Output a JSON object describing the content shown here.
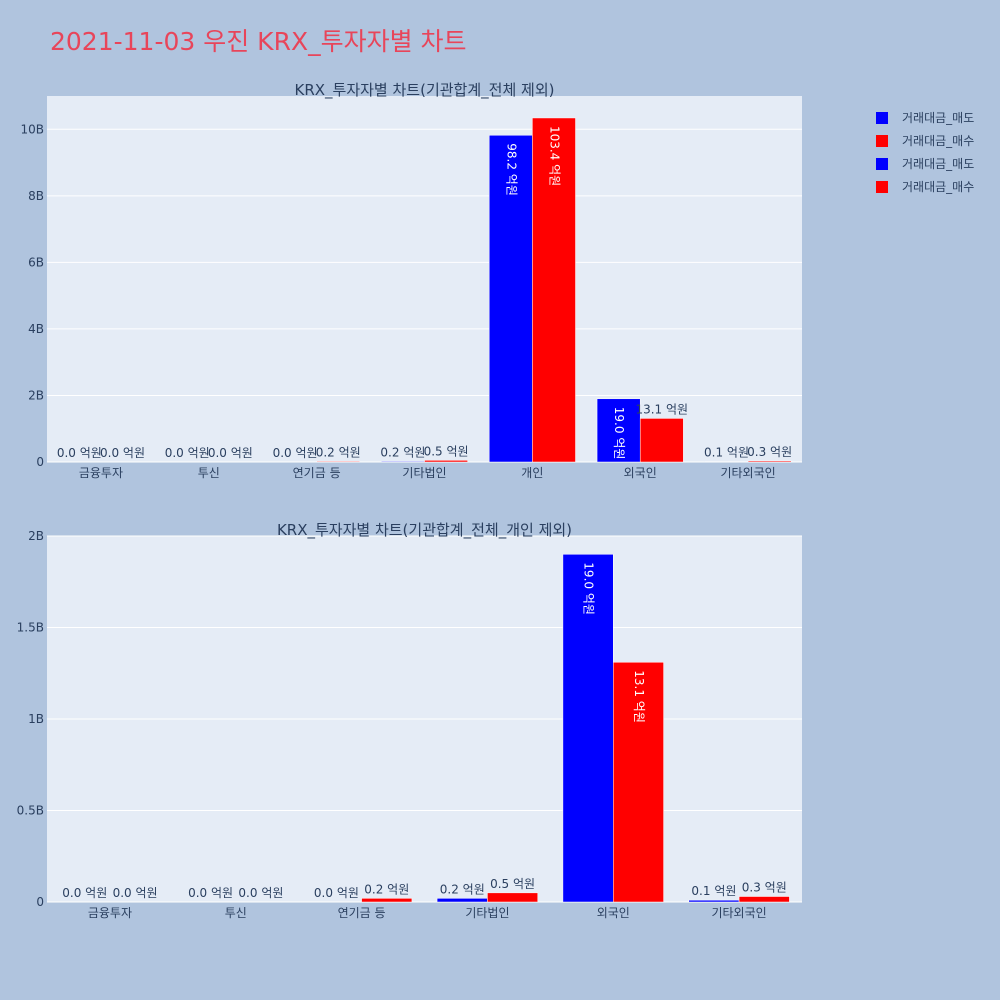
{
  "title": "2021-11-03 우진 KRX_투자자별 차트",
  "colors": {
    "sell": "#0000ff",
    "buy": "#ff0000",
    "plot_bg": "#e5ecf6",
    "page_bg": "#b0c4de",
    "text": "#2a3f5f"
  },
  "legend": [
    {
      "label": "거래대금_매도",
      "color": "#0000ff"
    },
    {
      "label": "거래대금_매수",
      "color": "#ff0000"
    },
    {
      "label": "거래대금_매도",
      "color": "#0000ff"
    },
    {
      "label": "거래대금_매수",
      "color": "#ff0000"
    }
  ],
  "chart_data": [
    {
      "type": "bar",
      "title": "KRX_투자자별 차트(기관합계_전체 제외)",
      "categories": [
        "금융투자",
        "투신",
        "연기금 등",
        "기타법인",
        "개인",
        "외국인",
        "기타외국인"
      ],
      "series": [
        {
          "name": "거래대금_매도",
          "values": [
            0.0,
            0.0,
            0.0,
            0.2,
            98.2,
            19.0,
            0.1
          ],
          "labels": [
            "0.0 억원",
            "0.0 억원",
            "0.0 억원",
            "0.2 억원",
            "98.2 억원",
            "19.0 억원",
            "0.1 억원"
          ]
        },
        {
          "name": "거래대금_매수",
          "values": [
            0.0,
            0.0,
            0.2,
            0.5,
            103.4,
            13.1,
            0.3
          ],
          "labels": [
            "0.0 억원",
            "0.0 억원",
            "0.2 억원",
            "0.5 억원",
            "103.4 억원",
            "13.1 억원",
            "0.3 억원"
          ]
        }
      ],
      "value_unit": "억원",
      "ylim": [
        0,
        110
      ],
      "yticks": [
        0,
        20,
        40,
        60,
        80,
        100
      ],
      "ytick_labels": [
        "0",
        "2B",
        "4B",
        "6B",
        "8B",
        "10B"
      ],
      "grid": true,
      "legend_position": "top-right"
    },
    {
      "type": "bar",
      "title": "KRX_투자자별 차트(기관합계_전체_개인 제외)",
      "categories": [
        "금융투자",
        "투신",
        "연기금 등",
        "기타법인",
        "외국인",
        "기타외국인"
      ],
      "series": [
        {
          "name": "거래대금_매도",
          "values": [
            0.0,
            0.0,
            0.0,
            0.2,
            19.0,
            0.1
          ],
          "labels": [
            "0.0 억원",
            "0.0 억원",
            "0.0 억원",
            "0.2 억원",
            "19.0 억원",
            "0.1 억원"
          ]
        },
        {
          "name": "거래대금_매수",
          "values": [
            0.0,
            0.0,
            0.2,
            0.5,
            13.1,
            0.3
          ],
          "labels": [
            "0.0 억원",
            "0.0 억원",
            "0.2 억원",
            "0.5 억원",
            "13.1 억원",
            "0.3 억원"
          ]
        }
      ],
      "value_unit": "억원",
      "ylim": [
        0,
        20
      ],
      "yticks": [
        0,
        5,
        10,
        15,
        20
      ],
      "ytick_labels": [
        "0",
        "0.5B",
        "1B",
        "1.5B",
        "2B"
      ],
      "grid": true,
      "legend_position": "top-right"
    }
  ]
}
